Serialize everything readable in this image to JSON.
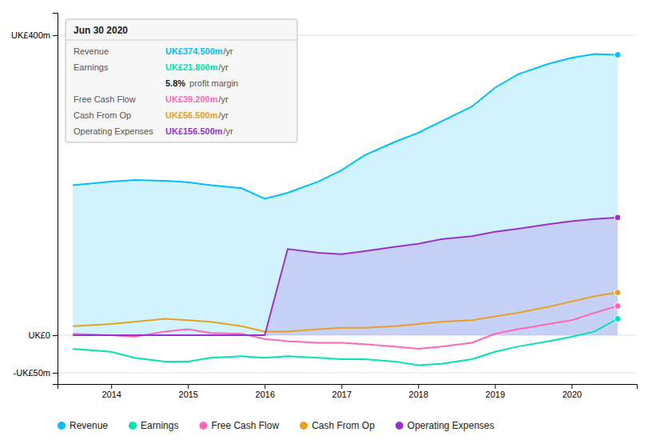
{
  "chart_data": {
    "type": "line",
    "x": [
      2013.5,
      2014.0,
      2014.3,
      2014.7,
      2015.0,
      2015.3,
      2015.7,
      2016.0,
      2016.3,
      2016.7,
      2017.0,
      2017.3,
      2017.7,
      2018.0,
      2018.3,
      2018.7,
      2019.0,
      2019.3,
      2019.7,
      2020.0,
      2020.3,
      2020.6
    ],
    "series": [
      {
        "name": "Revenue",
        "type": "area",
        "color": "#00bfff",
        "values": [
          200,
          205,
          207,
          206,
          204,
          200,
          196,
          182,
          190,
          205,
          220,
          240,
          258,
          270,
          285,
          305,
          330,
          348,
          362,
          370,
          375,
          374
        ]
      },
      {
        "name": "Earnings",
        "type": "line",
        "color": "#00e5b0",
        "values": [
          -18,
          -22,
          -30,
          -35,
          -35,
          -30,
          -28,
          -30,
          -28,
          -30,
          -32,
          -32,
          -35,
          -40,
          -38,
          -32,
          -22,
          -15,
          -8,
          -2,
          5,
          22
        ]
      },
      {
        "name": "Free Cash Flow",
        "type": "line",
        "color": "#ff69b4",
        "values": [
          2,
          0,
          -2,
          5,
          8,
          3,
          2,
          -5,
          -8,
          -10,
          -10,
          -12,
          -15,
          -18,
          -15,
          -10,
          2,
          8,
          15,
          20,
          30,
          39
        ]
      },
      {
        "name": "Cash From Op",
        "type": "line",
        "color": "#e8a020",
        "values": [
          12,
          15,
          18,
          22,
          20,
          18,
          12,
          5,
          5,
          8,
          10,
          10,
          12,
          15,
          18,
          20,
          25,
          30,
          38,
          45,
          52,
          57
        ]
      },
      {
        "name": "Operating Expenses",
        "type": "area",
        "color": "#9933cc",
        "values": [
          0,
          0,
          0,
          0,
          0,
          0,
          0,
          0,
          115,
          110,
          108,
          112,
          118,
          122,
          128,
          132,
          138,
          142,
          148,
          152,
          155,
          157
        ]
      }
    ],
    "xlim": [
      2013.3,
      2020.85
    ],
    "xticks": [
      2014,
      2015,
      2016,
      2017,
      2018,
      2019,
      2020
    ],
    "ylim": [
      -65,
      430
    ],
    "yticks": [
      {
        "value": -50,
        "label": "-UK£50m"
      },
      {
        "value": 0,
        "label": "UK£0"
      },
      {
        "value": 400,
        "label": "UK£400m"
      }
    ],
    "grid": true,
    "legend": "bottom",
    "annotations": {
      "title": "Jun 30 2020",
      "rows": [
        {
          "label": "Revenue",
          "text": "UK£374.500m",
          "unit": "/yr",
          "color": "#00bfff"
        },
        {
          "label": "Earnings",
          "text": "UK£21.800m",
          "unit": "/yr",
          "color": "#00e5b0"
        },
        {
          "text": "5.8%",
          "unit": "profit margin"
        },
        {
          "label": "Free Cash Flow",
          "text": "UK£39.200m",
          "unit": "/yr",
          "color": "#ff69b4"
        },
        {
          "label": "Cash From Op",
          "text": "UK£56.500m",
          "unit": "/yr",
          "color": "#e8a020"
        },
        {
          "label": "Operating Expenses",
          "text": "UK£156.500m",
          "unit": "/yr",
          "color": "#9933cc"
        }
      ]
    }
  }
}
